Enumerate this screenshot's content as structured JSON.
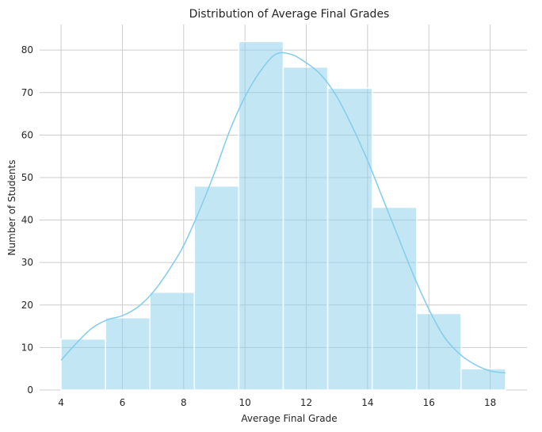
{
  "chart_data": {
    "type": "bar",
    "title": "Distribution of Average Final Grades",
    "xlabel": "Average Final Grade",
    "ylabel": "Number of Students",
    "bin_edges": [
      4.0,
      5.45,
      6.9,
      8.35,
      9.8,
      11.25,
      12.7,
      14.15,
      15.6,
      17.05,
      18.5
    ],
    "values": [
      12,
      17,
      23,
      48,
      82,
      76,
      71,
      43,
      18,
      5
    ],
    "xlim": [
      3.3,
      19.2
    ],
    "ylim": [
      0,
      86
    ],
    "xticks": [
      "4",
      "6",
      "8",
      "10",
      "12",
      "14",
      "16",
      "18"
    ],
    "yticks": [
      "0",
      "10",
      "20",
      "30",
      "40",
      "50",
      "60",
      "70",
      "80"
    ],
    "kde": {
      "x": [
        4,
        4.5,
        5,
        5.5,
        6,
        6.5,
        7,
        7.5,
        8,
        8.5,
        9,
        9.5,
        10,
        10.5,
        11,
        11.5,
        12,
        12.5,
        13,
        13.5,
        14,
        14.5,
        15,
        15.5,
        16,
        16.5,
        17,
        17.5,
        18,
        18.5
      ],
      "y": [
        7,
        11,
        14.5,
        16.5,
        17.5,
        19.5,
        23,
        28,
        34,
        42,
        51,
        61,
        69,
        75,
        79,
        79,
        77,
        74,
        69,
        62,
        54,
        45,
        36,
        27,
        19,
        12.5,
        8.5,
        6,
        4.5,
        4
      ]
    },
    "colors": {
      "bar_fill": "#87ceeb",
      "bar_opacity": 0.5,
      "bar_edge": "#ffffff",
      "kde_line": "#87ceeb",
      "grid": "#cccccc",
      "text": "#262626"
    },
    "grid": true
  }
}
